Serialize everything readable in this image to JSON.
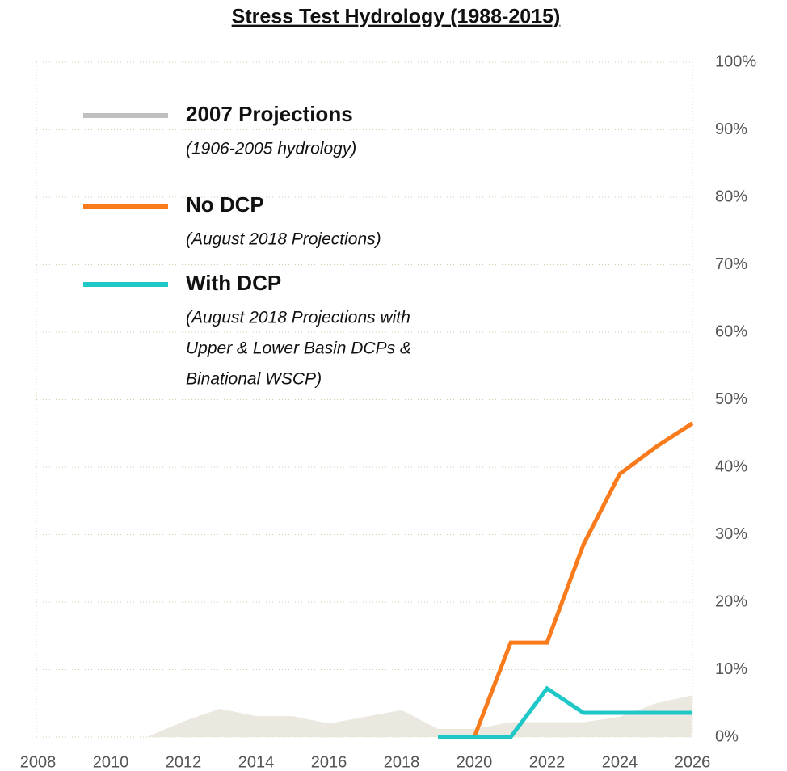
{
  "chart_data": {
    "type": "line",
    "title": "Stress Test Hydrology (1988-2015)",
    "x": [
      2008,
      2009,
      2010,
      2011,
      2012,
      2013,
      2014,
      2015,
      2016,
      2017,
      2018,
      2019,
      2020,
      2021,
      2022,
      2023,
      2024,
      2025,
      2026
    ],
    "series": [
      {
        "name": "2007 Projections",
        "note": [
          "(1906-2005 hydrology)"
        ],
        "color": "#ebe8e0",
        "legend_color": "#c0c0c0",
        "area": true,
        "values": [
          0,
          0,
          0,
          0,
          2.3,
          4.2,
          3.1,
          3.1,
          2,
          3,
          4,
          1.2,
          1.2,
          2.2,
          2.2,
          2.2,
          3,
          5,
          6.2
        ]
      },
      {
        "name": "No DCP",
        "note": [
          "(August 2018 Projections)"
        ],
        "color": "#f97b1c",
        "values": [
          null,
          null,
          null,
          null,
          null,
          null,
          null,
          null,
          null,
          null,
          null,
          null,
          0,
          14,
          14,
          28.5,
          39,
          43,
          46.5
        ]
      },
      {
        "name": "With DCP",
        "note": [
          "(August 2018 Projections with",
          "Upper & Lower Basin DCPs &",
          "Binational WSCP)"
        ],
        "color": "#1fc7c7",
        "values": [
          null,
          null,
          null,
          null,
          null,
          null,
          null,
          null,
          null,
          null,
          null,
          0,
          0,
          0,
          7.2,
          3.6,
          3.6,
          3.6,
          3.6
        ]
      }
    ],
    "xlim": [
      2008,
      2026
    ],
    "xticks": [
      2008,
      2010,
      2012,
      2014,
      2016,
      2018,
      2020,
      2022,
      2024,
      2026
    ],
    "ylim": [
      0,
      100
    ],
    "yticks": [
      {
        "value": 0,
        "label": "0%"
      },
      {
        "value": 10,
        "label": "10%"
      },
      {
        "value": 20,
        "label": "20%"
      },
      {
        "value": 30,
        "label": "30%"
      },
      {
        "value": 40,
        "label": "40%"
      },
      {
        "value": 50,
        "label": "50%"
      },
      {
        "value": 60,
        "label": "60%"
      },
      {
        "value": 70,
        "label": "70%"
      },
      {
        "value": 80,
        "label": "80%"
      },
      {
        "value": 90,
        "label": "90%"
      },
      {
        "value": 100,
        "label": "100%"
      }
    ],
    "grid": true,
    "legend": "upper left"
  }
}
